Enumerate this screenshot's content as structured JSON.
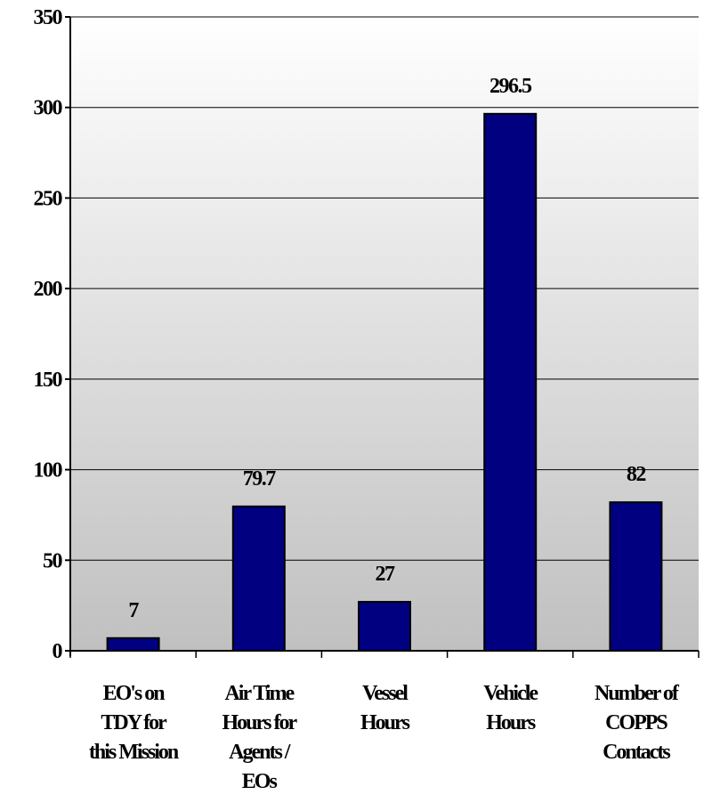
{
  "chart_data": {
    "type": "bar",
    "title": "",
    "xlabel": "",
    "ylabel": "",
    "ylim": [
      0,
      350
    ],
    "yticks": [
      0,
      50,
      100,
      150,
      200,
      250,
      300,
      350
    ],
    "grid": true,
    "legend": "none",
    "categories": [
      [
        "EO's on",
        "TDY for",
        "this Mission"
      ],
      [
        "Air Time",
        "Hours for",
        "Agents /",
        "EOs"
      ],
      [
        "Vessel",
        "Hours"
      ],
      [
        "Vehicle",
        "Hours"
      ],
      [
        "Number of",
        "COPPS",
        "Contacts"
      ]
    ],
    "values": [
      7,
      79.7,
      27,
      296.5,
      82
    ],
    "data_labels": [
      "7",
      "79.7",
      "27",
      "296.5",
      "82"
    ],
    "colors": {
      "bar_fill": "#000080",
      "bar_stroke": "#000000",
      "plot_bg_top": "#ffffff",
      "plot_bg_bottom": "#c0c0c0",
      "grid": "#000000"
    }
  }
}
